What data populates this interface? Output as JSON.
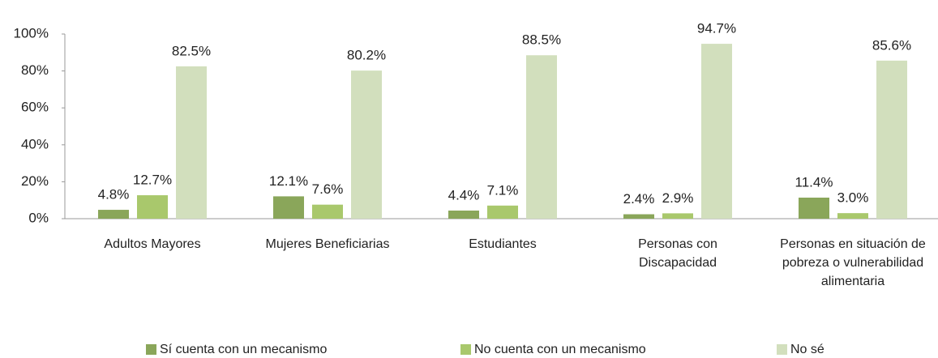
{
  "chart_data": {
    "type": "bar",
    "categories": [
      "Adultos Mayores",
      "Mujeres Beneficiarias",
      "Estudiantes",
      "Personas con Discapacidad",
      "Personas en situación de pobreza o vulnerabilidad alimentaria"
    ],
    "series": [
      {
        "name": "Sí cuenta con un mecanismo",
        "color": "#8aa65a",
        "values": [
          4.8,
          12.1,
          4.4,
          2.4,
          11.4
        ],
        "value_labels": [
          "4.8%",
          "12.1%",
          "4.4%",
          "2.4%",
          "11.4%"
        ]
      },
      {
        "name": "No cuenta con un mecanismo",
        "color": "#a9c86c",
        "values": [
          12.7,
          7.6,
          7.1,
          2.9,
          3.0
        ],
        "value_labels": [
          "12.7%",
          "7.6%",
          "7.1%",
          "2.9%",
          "3.0%"
        ]
      },
      {
        "name": "No sé",
        "color": "#d2dfbd",
        "values": [
          82.5,
          80.2,
          88.5,
          94.7,
          85.6
        ],
        "value_labels": [
          "82.5%",
          "80.2%",
          "88.5%",
          "94.7%",
          "85.6%"
        ]
      }
    ],
    "ylim": [
      0,
      100
    ],
    "yticks": [
      {
        "value": 0,
        "label": "0%"
      },
      {
        "value": 20,
        "label": "20%"
      },
      {
        "value": 40,
        "label": "40%"
      },
      {
        "value": 60,
        "label": "60%"
      },
      {
        "value": 80,
        "label": "80%"
      },
      {
        "value": 100,
        "label": "100%"
      }
    ],
    "legend": "bottom"
  }
}
